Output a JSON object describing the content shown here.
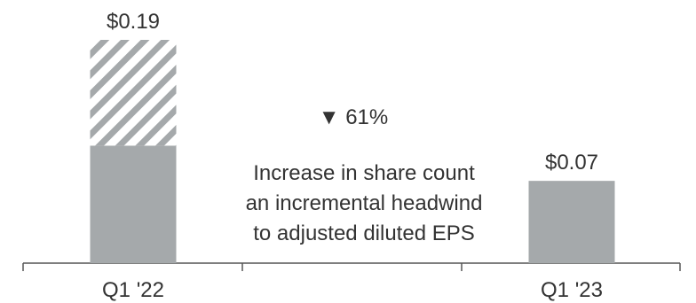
{
  "chart_data": {
    "type": "bar",
    "categories": [
      "Q1 '22",
      "Q1 '23"
    ],
    "series": [
      {
        "values": [
          0.1,
          0.07
        ]
      },
      {
        "values": [
          0.09,
          0
        ]
      }
    ],
    "totals": [
      0.19,
      0.07
    ],
    "total_labels": [
      "$0.19",
      "$0.07"
    ],
    "change_label": "▼ 61%",
    "annotation": [
      "Increase in share count",
      "an incremental headwind",
      "to adjusted diluted EPS"
    ],
    "ylim": [
      0,
      0.19
    ],
    "grid": false,
    "legend": "none",
    "colors": {
      "solid": "#a5a9ab",
      "hatch": "#a5a9ab",
      "axis": "#555555",
      "text": "#333333"
    }
  }
}
